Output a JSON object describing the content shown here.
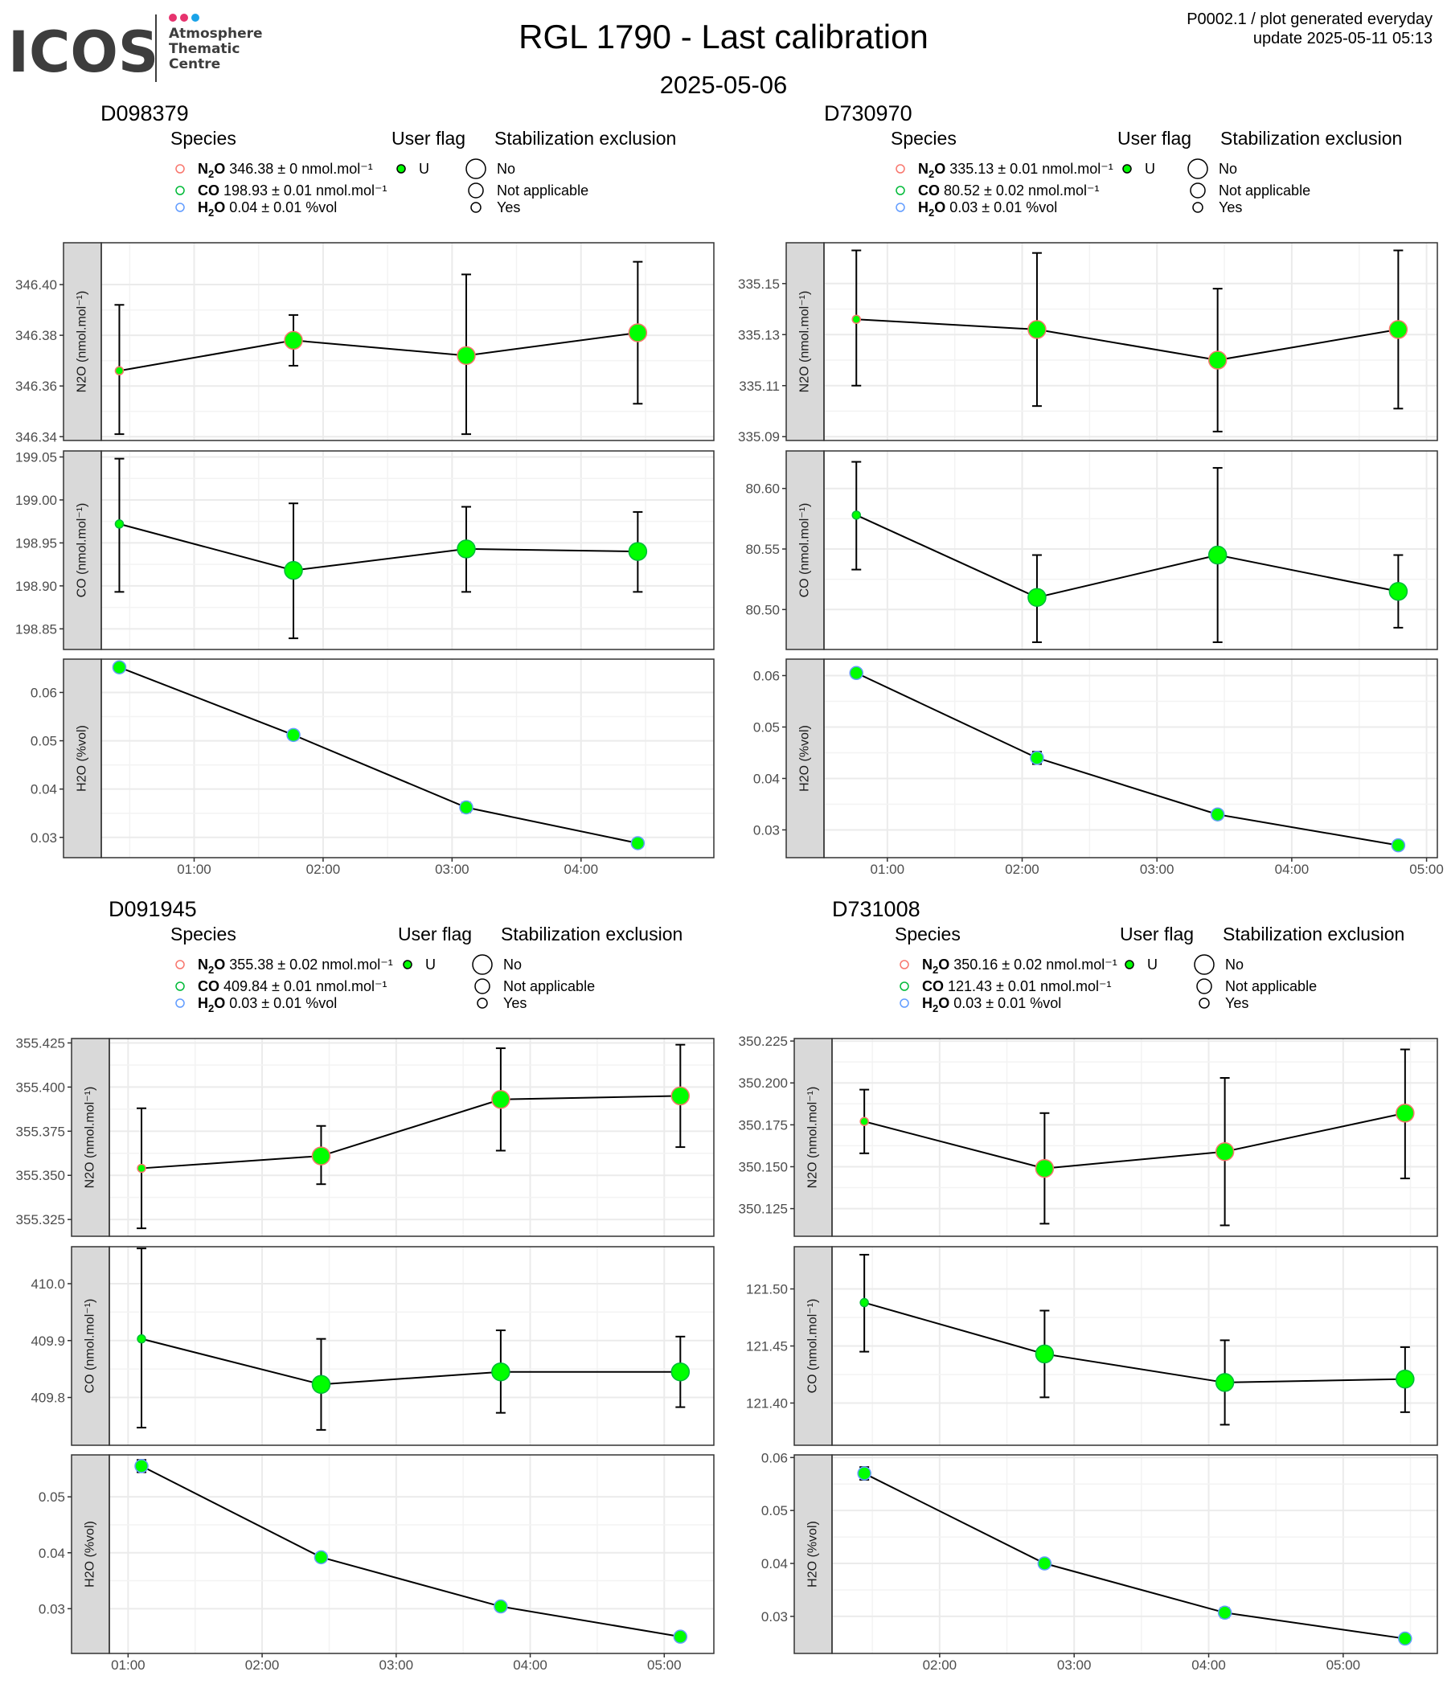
{
  "header": {
    "logo_text": "ICOS",
    "logo_sub": [
      "Atmosphere",
      "Thematic",
      "Centre"
    ],
    "logo_dot_colors": [
      "#e6336e",
      "#e6336e",
      "#1aa3e8"
    ],
    "title": "RGL 1790 - Last calibration",
    "subtitle": "2025-05-06",
    "top_right_line1": "P0002.1 / plot generated everyday",
    "top_right_line2": "update  2025-05-11 05:13"
  },
  "legend_titles": {
    "species": "Species",
    "user_flag": "User flag",
    "stabilization": "Stabilization exclusion",
    "user_flag_item": "U",
    "stab_items": [
      "No",
      "Not applicable",
      "Yes"
    ]
  },
  "colors": {
    "n2o": "#f8766d",
    "co": "#00ba38",
    "h2o": "#619cff",
    "point_fill": "#00ff00",
    "strip_bg": "#d9d9d9",
    "grid": "#ebebeb"
  },
  "chart_data": [
    {
      "type": "scatter",
      "title": "D098379",
      "legend": [
        {
          "species": "N2O",
          "text": "346.38 ± 0 nmol.mol⁻¹"
        },
        {
          "species": "CO",
          "text": "198.93 ± 0.01 nmol.mol⁻¹"
        },
        {
          "species": "H2O",
          "text": "0.04 ± 0.01 %vol"
        }
      ],
      "x_ticks": [
        "01:00",
        "02:00",
        "03:00",
        "04:00"
      ],
      "x_tick_pos": [
        1.0,
        2.0,
        3.0,
        4.0
      ],
      "x_range": [
        0.28,
        5.03
      ],
      "x": [
        0.42,
        1.77,
        3.11,
        4.44
      ],
      "panels": [
        {
          "species": "N2O",
          "ylabel": "N2O (nmol.mol⁻¹)",
          "ylim": [
            346.3385,
            346.4165
          ],
          "y_ticks": [
            346.34,
            346.36,
            346.38,
            346.4
          ],
          "y_tick_labels": [
            "346.34",
            "346.36",
            "346.38",
            "346.40"
          ],
          "values": [
            346.366,
            346.378,
            346.372,
            346.381
          ],
          "err_low": [
            346.341,
            346.368,
            346.341,
            346.353
          ],
          "err_high": [
            346.392,
            346.388,
            346.404,
            346.409
          ]
        },
        {
          "species": "CO",
          "ylabel": "CO (nmol.mol⁻¹)",
          "ylim": [
            198.826,
            199.057
          ],
          "y_ticks": [
            198.85,
            198.9,
            198.95,
            199.0,
            199.05
          ],
          "y_tick_labels": [
            "198.85",
            "198.90",
            "198.95",
            "199.00",
            "199.05"
          ],
          "values": [
            198.972,
            198.918,
            198.943,
            198.94
          ],
          "err_low": [
            198.893,
            198.839,
            198.893,
            198.893
          ],
          "err_high": [
            199.048,
            198.996,
            198.992,
            198.986
          ]
        },
        {
          "species": "H2O",
          "ylabel": "H2O (%vol)",
          "ylim": [
            0.0258,
            0.0669
          ],
          "y_ticks": [
            0.03,
            0.04,
            0.05,
            0.06
          ],
          "y_tick_labels": [
            "0.03",
            "0.04",
            "0.05",
            "0.06"
          ],
          "values": [
            0.0652,
            0.0512,
            0.0362,
            0.0288
          ],
          "err_low": [
            0.0644,
            0.0503,
            0.0352,
            0.028
          ],
          "err_high": [
            0.066,
            0.0521,
            0.0372,
            0.0296
          ]
        }
      ],
      "point_size": [
        "Yes",
        "No",
        "No",
        "No"
      ]
    },
    {
      "type": "scatter",
      "title": "D730970",
      "legend": [
        {
          "species": "N2O",
          "text": "335.13 ± 0.01 nmol.mol⁻¹"
        },
        {
          "species": "CO",
          "text": "80.52 ± 0.02 nmol.mol⁻¹"
        },
        {
          "species": "H2O",
          "text": "0.03 ± 0.01 %vol"
        }
      ],
      "x_ticks": [
        "01:00",
        "02:00",
        "03:00",
        "04:00",
        "05:00"
      ],
      "x_tick_pos": [
        1.0,
        2.0,
        3.0,
        4.0,
        5.0
      ],
      "x_range": [
        0.53,
        5.08
      ],
      "x": [
        0.77,
        2.11,
        3.45,
        4.79
      ],
      "panels": [
        {
          "species": "N2O",
          "ylabel": "N2O (nmol.mol⁻¹)",
          "ylim": [
            335.0885,
            335.166
          ],
          "y_ticks": [
            335.09,
            335.11,
            335.13,
            335.15
          ],
          "y_tick_labels": [
            "335.09",
            "335.11",
            "335.13",
            "335.15"
          ],
          "values": [
            335.136,
            335.132,
            335.12,
            335.132
          ],
          "err_low": [
            335.11,
            335.102,
            335.092,
            335.101
          ],
          "err_high": [
            335.163,
            335.162,
            335.148,
            335.163
          ]
        },
        {
          "species": "CO",
          "ylabel": "CO (nmol.mol⁻¹)",
          "ylim": [
            80.467,
            80.631
          ],
          "y_ticks": [
            80.5,
            80.55,
            80.6
          ],
          "y_tick_labels": [
            "80.50",
            "80.55",
            "80.60"
          ],
          "values": [
            80.578,
            80.51,
            80.545,
            80.515
          ],
          "err_low": [
            80.533,
            80.473,
            80.473,
            80.485
          ],
          "err_high": [
            80.622,
            80.545,
            80.617,
            80.545
          ]
        },
        {
          "species": "H2O",
          "ylabel": "H2O (%vol)",
          "ylim": [
            0.0246,
            0.0632
          ],
          "y_ticks": [
            0.03,
            0.04,
            0.05,
            0.06
          ],
          "y_tick_labels": [
            "0.03",
            "0.04",
            "0.05",
            "0.06"
          ],
          "values": [
            0.0605,
            0.044,
            0.033,
            0.027
          ],
          "err_low": [
            0.0597,
            0.0428,
            0.0324,
            0.0262
          ],
          "err_high": [
            0.0613,
            0.0452,
            0.0336,
            0.0278
          ]
        }
      ],
      "point_size": [
        "Yes",
        "No",
        "No",
        "No"
      ]
    },
    {
      "type": "scatter",
      "title": "D091945",
      "legend": [
        {
          "species": "N2O",
          "text": "355.38 ± 0.02 nmol.mol⁻¹"
        },
        {
          "species": "CO",
          "text": "409.84 ± 0.01 nmol.mol⁻¹"
        },
        {
          "species": "H2O",
          "text": "0.03 ± 0.01 %vol"
        }
      ],
      "x_ticks": [
        "01:00",
        "02:00",
        "03:00",
        "04:00",
        "05:00"
      ],
      "x_tick_pos": [
        1.0,
        2.0,
        3.0,
        4.0,
        5.0
      ],
      "x_range": [
        0.86,
        5.37
      ],
      "x": [
        1.1,
        2.44,
        3.78,
        5.12
      ],
      "panels": [
        {
          "species": "N2O",
          "ylabel": "N2O (nmol.mol⁻¹)",
          "ylim": [
            355.3155,
            355.4275
          ],
          "y_ticks": [
            355.325,
            355.35,
            355.375,
            355.4,
            355.425
          ],
          "y_tick_labels": [
            "355.325",
            "355.350",
            "355.375",
            "355.400",
            "355.425"
          ],
          "values": [
            355.354,
            355.361,
            355.393,
            355.395
          ],
          "err_low": [
            355.32,
            355.345,
            355.364,
            355.366
          ],
          "err_high": [
            355.388,
            355.378,
            355.422,
            355.424
          ]
        },
        {
          "species": "CO",
          "ylabel": "CO (nmol.mol⁻¹)",
          "ylim": [
            409.716,
            410.065
          ],
          "y_ticks": [
            409.8,
            409.9,
            410.0
          ],
          "y_tick_labels": [
            "409.8",
            "409.9",
            "410.0"
          ],
          "values": [
            409.903,
            409.823,
            409.845,
            409.845
          ],
          "err_low": [
            409.747,
            409.743,
            409.773,
            409.783
          ],
          "err_high": [
            410.062,
            409.903,
            409.918,
            409.907
          ]
        },
        {
          "species": "H2O",
          "ylabel": "H2O (%vol)",
          "ylim": [
            0.022,
            0.0575
          ],
          "y_ticks": [
            0.03,
            0.04,
            0.05
          ],
          "y_tick_labels": [
            "0.03",
            "0.04",
            "0.05"
          ],
          "values": [
            0.0555,
            0.0392,
            0.0304,
            0.025
          ],
          "err_low": [
            0.0544,
            0.0385,
            0.0298,
            0.0245
          ],
          "err_high": [
            0.0566,
            0.0399,
            0.031,
            0.0255
          ]
        }
      ],
      "point_size": [
        "Yes",
        "No",
        "No",
        "No"
      ]
    },
    {
      "type": "scatter",
      "title": "D731008",
      "legend": [
        {
          "species": "N2O",
          "text": "350.16 ± 0.02 nmol.mol⁻¹"
        },
        {
          "species": "CO",
          "text": "121.43 ± 0.01 nmol.mol⁻¹"
        },
        {
          "species": "H2O",
          "text": "0.03 ± 0.01 %vol"
        }
      ],
      "x_ticks": [
        "02:00",
        "03:00",
        "04:00",
        "05:00"
      ],
      "x_tick_pos": [
        2.0,
        3.0,
        4.0,
        5.0
      ],
      "x_range": [
        1.2,
        5.7
      ],
      "x": [
        1.44,
        2.78,
        4.12,
        5.46
      ],
      "panels": [
        {
          "species": "N2O",
          "ylabel": "N2O (nmol.mol⁻¹)",
          "ylim": [
            350.1085,
            350.2265
          ],
          "y_ticks": [
            350.125,
            350.15,
            350.175,
            350.2,
            350.225
          ],
          "y_tick_labels": [
            "350.125",
            "350.150",
            "350.175",
            "350.200",
            "350.225"
          ],
          "values": [
            350.177,
            350.149,
            350.159,
            350.182
          ],
          "err_low": [
            350.158,
            350.116,
            350.115,
            350.143
          ],
          "err_high": [
            350.196,
            350.182,
            350.203,
            350.22
          ]
        },
        {
          "species": "CO",
          "ylabel": "CO (nmol.mol⁻¹)",
          "ylim": [
            121.363,
            121.537
          ],
          "y_ticks": [
            121.4,
            121.45,
            121.5
          ],
          "y_tick_labels": [
            "121.40",
            "121.45",
            "121.50"
          ],
          "values": [
            121.488,
            121.443,
            121.418,
            121.421
          ],
          "err_low": [
            121.445,
            121.405,
            121.381,
            121.392
          ],
          "err_high": [
            121.53,
            121.481,
            121.455,
            121.449
          ]
        },
        {
          "species": "H2O",
          "ylabel": "H2O (%vol)",
          "ylim": [
            0.023,
            0.0605
          ],
          "y_ticks": [
            0.03,
            0.04,
            0.05,
            0.06
          ],
          "y_tick_labels": [
            "0.03",
            "0.04",
            "0.05",
            "0.06"
          ],
          "values": [
            0.057,
            0.04,
            0.0307,
            0.0258
          ],
          "err_low": [
            0.0558,
            0.0394,
            0.0298,
            0.0253
          ],
          "err_high": [
            0.0582,
            0.0406,
            0.0316,
            0.0263
          ]
        }
      ],
      "point_size": [
        "Yes",
        "No",
        "No",
        "No"
      ]
    }
  ]
}
